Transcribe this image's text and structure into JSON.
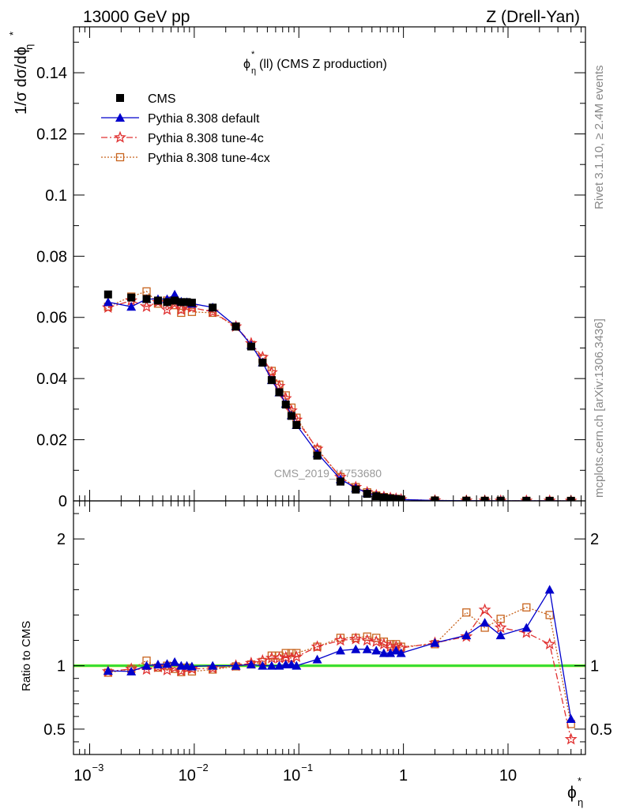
{
  "header": {
    "energy": "13000 GeV pp",
    "process": "Z (Drell-Yan)",
    "plot_title": "(ll) (CMS Z production)",
    "analysis_id": "CMS_2019_I1753680",
    "side_label_top": "Rivet 3.1.10, ≥ 2.4M events",
    "side_label_bottom": "mcplots.cern.ch [arXiv:1306.3436]"
  },
  "colors": {
    "cms": "#000000",
    "default": "#0000cc",
    "tune4c": "#e03030",
    "tune4cx": "#c8641e",
    "band_inner": "#33dd33",
    "band_outer": "#ffff66"
  },
  "chart_data": {
    "type": "line",
    "x_scale": "log",
    "xlim": [
      0.0007,
      55
    ],
    "x_ticks": [
      {
        "label": "10",
        "exp": "−3"
      },
      {
        "label": "10",
        "exp": "−2"
      },
      {
        "label": "10",
        "exp": "−1"
      },
      {
        "label": "1",
        "exp": ""
      },
      {
        "label": "10",
        "exp": ""
      }
    ],
    "xlabel": "ϕ",
    "upper": {
      "ylabel": "1/σ dσ/dϕ",
      "ylim": [
        0,
        0.155
      ],
      "y_tick_labels": [
        "0",
        "0.02",
        "0.04",
        "0.06",
        "0.08",
        "0.1",
        "0.12",
        "0.14"
      ],
      "legend_position": "top-left",
      "legend": [
        "CMS",
        "Pythia 8.308 default",
        "Pythia 8.308 tune-4c",
        "Pythia 8.308 tune-4cx"
      ]
    },
    "lower": {
      "ylabel": "Ratio to CMS",
      "ylim": [
        0.3,
        2.3
      ],
      "y_tick_labels": [
        "0.5",
        "1",
        "2"
      ]
    },
    "x": [
      0.0015,
      0.0025,
      0.0035,
      0.0045,
      0.0055,
      0.0065,
      0.0075,
      0.0085,
      0.0095,
      0.015,
      0.025,
      0.035,
      0.045,
      0.055,
      0.065,
      0.075,
      0.085,
      0.095,
      0.15,
      0.25,
      0.35,
      0.45,
      0.55,
      0.65,
      0.75,
      0.85,
      0.95,
      2,
      4,
      6,
      8.5,
      15,
      25,
      40
    ],
    "series": [
      {
        "name": "CMS",
        "values": [
          0.0675,
          0.0665,
          0.066,
          0.0655,
          0.065,
          0.0655,
          0.065,
          0.065,
          0.0648,
          0.0632,
          0.057,
          0.0505,
          0.0452,
          0.0395,
          0.0355,
          0.0315,
          0.0278,
          0.0248,
          0.0148,
          0.0063,
          0.0037,
          0.0023,
          0.0015,
          0.0011,
          0.0008,
          0.0006,
          0.0004,
          0.00012,
          5e-05,
          3e-05,
          2.5e-05,
          2e-05,
          1.5e-05,
          1e-05
        ]
      },
      {
        "name": "Pythia 8.308 default",
        "values": [
          0.065,
          0.0635,
          0.066,
          0.066,
          0.066,
          0.0675,
          0.0652,
          0.065,
          0.0645,
          0.0633,
          0.0571,
          0.051,
          0.0453,
          0.0395,
          0.0355,
          0.0318,
          0.028,
          0.0248,
          0.0156,
          0.0071,
          0.0042,
          0.0026,
          0.0017,
          0.0012,
          0.00088,
          0.00068,
          0.00044,
          0.00014,
          6e-05,
          4e-05,
          3e-05,
          2.6e-05,
          2.4e-05,
          6e-06
        ],
        "ratio": [
          0.96,
          0.955,
          1.0,
          1.01,
          1.015,
          1.03,
          1.0,
          1.0,
          0.995,
          1.0,
          1.0,
          1.01,
          1.0,
          1.0,
          1.0,
          1.01,
          1.01,
          1.0,
          1.05,
          1.12,
          1.13,
          1.13,
          1.12,
          1.1,
          1.1,
          1.12,
          1.1,
          1.18,
          1.24,
          1.34,
          1.24,
          1.3,
          1.6,
          0.58
        ]
      },
      {
        "name": "Pythia 8.308 tune-4c",
        "values": [
          0.0632,
          0.0655,
          0.0635,
          0.065,
          0.0625,
          0.0645,
          0.0625,
          0.0635,
          0.0632,
          0.0618,
          0.057,
          0.0515,
          0.047,
          0.042,
          0.0375,
          0.0335,
          0.0295,
          0.0265,
          0.017,
          0.0078,
          0.0045,
          0.0028,
          0.0018,
          0.00128,
          0.00092,
          0.00069,
          0.00046,
          0.00014,
          6e-05,
          4e-05,
          3e-05,
          2.6e-05,
          1.8e-05,
          4e-06
        ],
        "ratio": [
          0.955,
          0.975,
          0.97,
          0.99,
          0.965,
          0.985,
          0.96,
          0.98,
          0.975,
          0.98,
          1.0,
          1.02,
          1.04,
          1.06,
          1.06,
          1.065,
          1.06,
          1.07,
          1.15,
          1.2,
          1.21,
          1.2,
          1.19,
          1.17,
          1.15,
          1.15,
          1.14,
          1.18,
          1.23,
          1.44,
          1.3,
          1.26,
          1.17,
          0.42
        ]
      },
      {
        "name": "Pythia 8.308 tune-4cx",
        "values": [
          0.0635,
          0.0668,
          0.0685,
          0.0645,
          0.0655,
          0.064,
          0.0615,
          0.0645,
          0.0618,
          0.0615,
          0.057,
          0.051,
          0.0465,
          0.0425,
          0.038,
          0.0345,
          0.0305,
          0.0272,
          0.0168,
          0.0078,
          0.0045,
          0.0028,
          0.0018,
          0.00126,
          0.00092,
          0.00068,
          0.00046,
          0.00014,
          7e-05,
          4e-05,
          3.7e-05,
          3e-05,
          2e-05,
          5.5e-06
        ],
        "ratio": [
          0.945,
          0.975,
          1.04,
          0.985,
          1.0,
          0.975,
          0.95,
          0.985,
          0.955,
          0.97,
          0.995,
          1.01,
          1.03,
          1.08,
          1.08,
          1.1,
          1.1,
          1.1,
          1.15,
          1.22,
          1.22,
          1.23,
          1.22,
          1.19,
          1.17,
          1.17,
          1.15,
          1.17,
          1.42,
          1.3,
          1.37,
          1.46,
          1.4,
          0.54
        ]
      }
    ]
  }
}
